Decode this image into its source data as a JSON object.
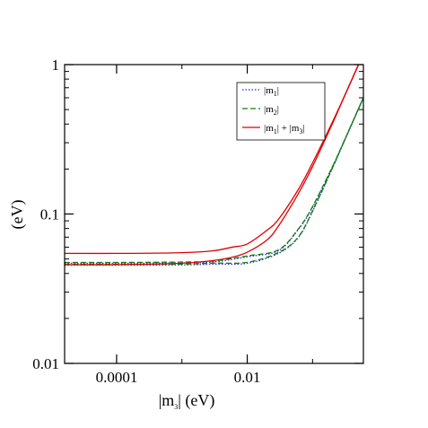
{
  "chart_data": {
    "type": "line",
    "xscale": "log",
    "yscale": "log",
    "xlim": [
      1.6e-05,
      0.6
    ],
    "ylim": [
      0.01,
      1
    ],
    "xlabel": {
      "pre": "|m",
      "sub": "3",
      "post": "| (eV)"
    },
    "ylabel": "(eV)",
    "xticks": [
      {
        "value": 0.0001,
        "label": "0.0001"
      },
      {
        "value": 0.01,
        "label": "0.01"
      }
    ],
    "yticks": [
      {
        "value": 0.01,
        "label": "0.01"
      },
      {
        "value": 0.1,
        "label": "0.1"
      },
      {
        "value": 1,
        "label": "1"
      }
    ],
    "legend": {
      "position": "top-right",
      "entries": [
        {
          "pre": "|m",
          "sub": "1",
          "post": "|",
          "sub2": "",
          "post2": ""
        },
        {
          "pre": "|m",
          "sub": "2",
          "post": "|",
          "sub2": "",
          "post2": ""
        },
        {
          "pre": "|m",
          "sub": "1",
          "post": "| + |m",
          "sub2": "3",
          "post2": "|"
        }
      ]
    },
    "grid": false,
    "series": [
      {
        "key": "m1_upper",
        "legend_index": 0,
        "color": "#2b2bd9",
        "dash": "1.5,2",
        "x": [
          1.6e-05,
          0.0001,
          0.001,
          0.003,
          0.01,
          0.03,
          0.06,
          0.1,
          0.2,
          0.3,
          0.6
        ],
        "y": [
          0.0468,
          0.0468,
          0.0471,
          0.0477,
          0.0517,
          0.0568,
          0.0785,
          0.111,
          0.205,
          0.303,
          0.6
        ]
      },
      {
        "key": "m1_lower",
        "legend_index": 0,
        "color": "#2b2bd9",
        "dash": "1.5,2",
        "x": [
          1.6e-05,
          0.0001,
          0.001,
          0.003,
          0.01,
          0.03,
          0.06,
          0.1,
          0.2,
          0.3,
          0.6
        ],
        "y": [
          0.0455,
          0.0455,
          0.0456,
          0.0462,
          0.0468,
          0.0545,
          0.0693,
          0.104,
          0.201,
          0.301,
          0.6
        ]
      },
      {
        "key": "m2_upper",
        "legend_index": 1,
        "color": "#127a12",
        "dash": "6,3",
        "x": [
          1.6e-05,
          0.0001,
          0.001,
          0.003,
          0.01,
          0.03,
          0.06,
          0.1,
          0.2,
          0.3,
          0.6
        ],
        "y": [
          0.0474,
          0.0474,
          0.0477,
          0.0484,
          0.0524,
          0.0575,
          0.079,
          0.112,
          0.206,
          0.304,
          0.6
        ]
      },
      {
        "key": "m2_lower",
        "legend_index": 1,
        "color": "#127a12",
        "dash": "6,3",
        "x": [
          1.6e-05,
          0.0001,
          0.001,
          0.003,
          0.01,
          0.03,
          0.06,
          0.1,
          0.2,
          0.3,
          0.6
        ],
        "y": [
          0.0461,
          0.0461,
          0.0462,
          0.0469,
          0.0475,
          0.0552,
          0.0698,
          0.105,
          0.202,
          0.302,
          0.6
        ]
      },
      {
        "key": "sum_upper",
        "legend_index": 2,
        "color": "#e00000",
        "dash": "",
        "x": [
          1.6e-05,
          0.0001,
          0.001,
          0.003,
          0.006,
          0.01,
          0.02,
          0.03,
          0.06,
          0.1,
          0.2,
          0.3,
          0.6
        ],
        "y": [
          0.0545,
          0.0545,
          0.0551,
          0.0567,
          0.0601,
          0.063,
          0.0778,
          0.092,
          0.145,
          0.22,
          0.41,
          0.6,
          1.19
        ]
      },
      {
        "key": "sum_lower",
        "legend_index": 2,
        "color": "#e00000",
        "dash": "",
        "x": [
          1.6e-05,
          0.0001,
          0.001,
          0.003,
          0.006,
          0.01,
          0.02,
          0.03,
          0.06,
          0.1,
          0.2,
          0.3,
          0.6
        ],
        "y": [
          0.0458,
          0.0458,
          0.0468,
          0.0488,
          0.0515,
          0.0555,
          0.067,
          0.083,
          0.136,
          0.208,
          0.4,
          0.599,
          1.18
        ]
      }
    ]
  }
}
